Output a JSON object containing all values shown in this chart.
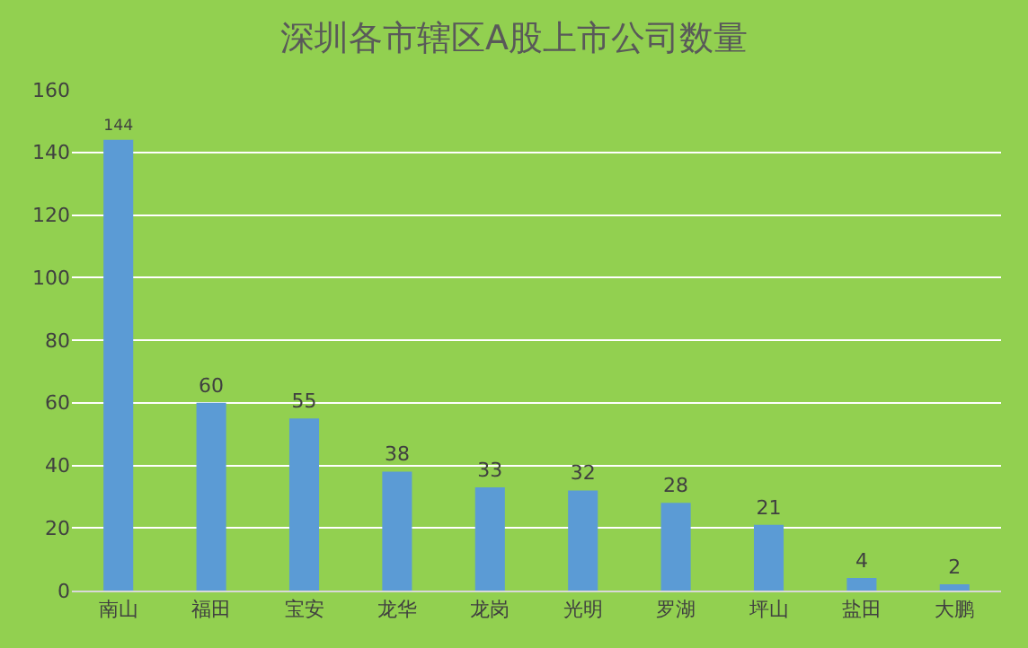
{
  "chart_data": {
    "type": "bar",
    "title": "深圳各市辖区A股上市公司数量",
    "categories": [
      "南山",
      "福田",
      "宝安",
      "龙华",
      "龙岗",
      "光明",
      "罗湖",
      "坪山",
      "盐田",
      "大鹏"
    ],
    "values": [
      144,
      60,
      55,
      38,
      33,
      32,
      28,
      21,
      4,
      2
    ],
    "color": "#5b9bd5",
    "ylim": [
      0,
      160
    ],
    "yticks": [
      0,
      20,
      40,
      60,
      80,
      100,
      120,
      140,
      160
    ],
    "grid": "y",
    "data_labels": true
  }
}
